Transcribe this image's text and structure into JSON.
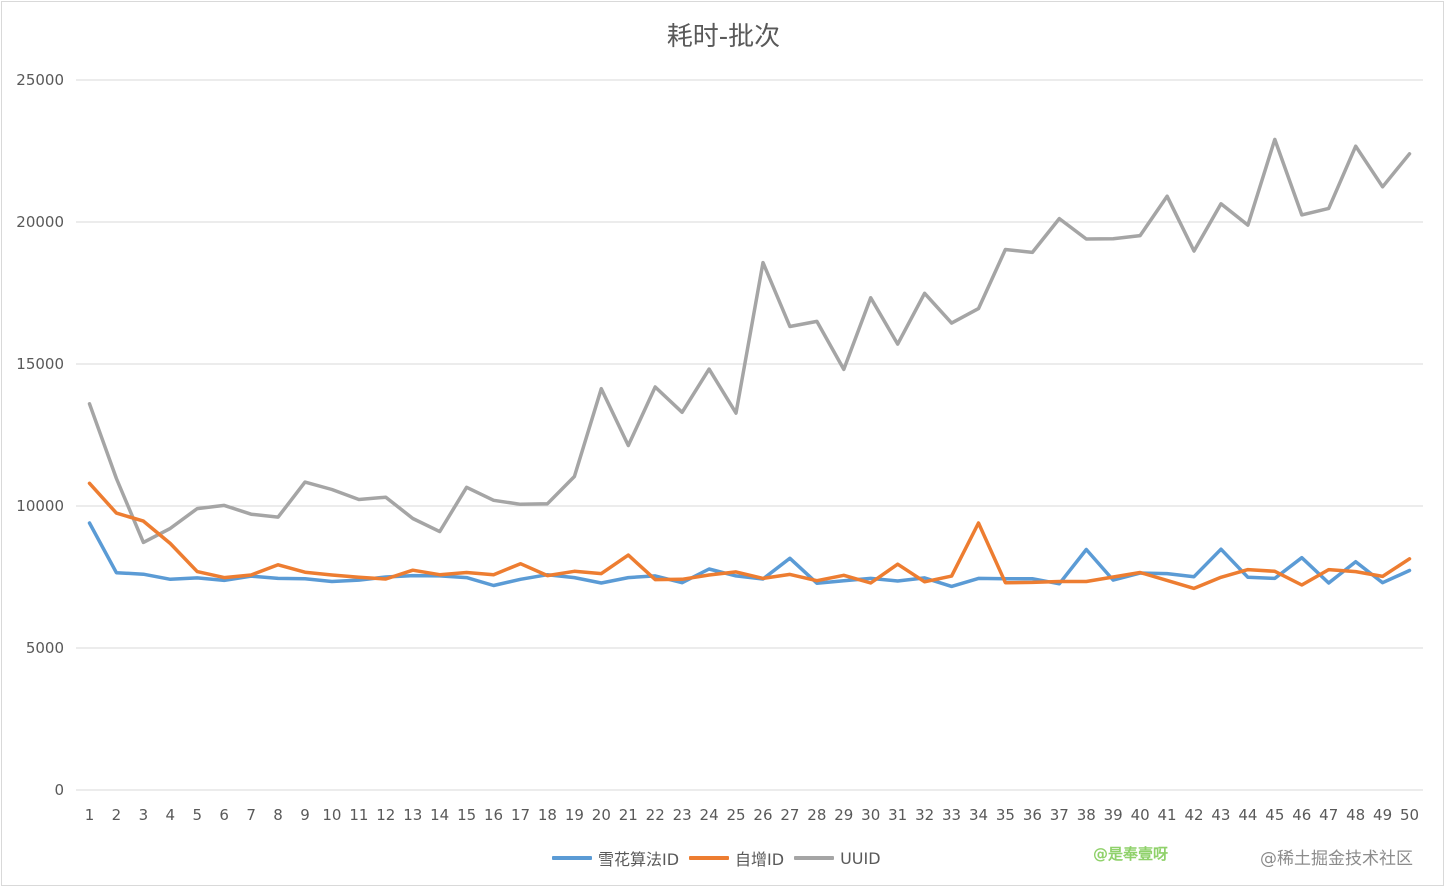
{
  "chart_data": {
    "type": "line",
    "title": "耗时-批次",
    "xlabel": "",
    "ylabel": "",
    "ylim": [
      0,
      25000
    ],
    "yticks": [
      0,
      5000,
      10000,
      15000,
      20000,
      25000
    ],
    "grid": true,
    "legend_position": "bottom",
    "categories": [
      "1",
      "2",
      "3",
      "4",
      "5",
      "6",
      "7",
      "8",
      "9",
      "10",
      "11",
      "12",
      "13",
      "14",
      "15",
      "16",
      "17",
      "18",
      "19",
      "20",
      "21",
      "22",
      "23",
      "24",
      "25",
      "26",
      "27",
      "28",
      "29",
      "30",
      "31",
      "32",
      "33",
      "34",
      "35",
      "36",
      "37",
      "38",
      "39",
      "40",
      "41",
      "42",
      "43",
      "44",
      "45",
      "46",
      "47",
      "48",
      "49",
      "50"
    ],
    "series": [
      {
        "name": "雪花算法ID",
        "color": "#5b9bd5",
        "values": [
          9400,
          7650,
          7600,
          7420,
          7470,
          7380,
          7530,
          7450,
          7440,
          7340,
          7390,
          7500,
          7550,
          7540,
          7480,
          7200,
          7420,
          7580,
          7480,
          7290,
          7480,
          7540,
          7300,
          7780,
          7540,
          7430,
          8160,
          7280,
          7370,
          7450,
          7360,
          7470,
          7170,
          7450,
          7440,
          7440,
          7260,
          8470,
          7390,
          7640,
          7620,
          7510,
          8480,
          7490,
          7450,
          8180,
          7290,
          8040,
          7300,
          7730
        ]
      },
      {
        "name": "自增ID",
        "color": "#ed7d31",
        "values": [
          10800,
          9750,
          9470,
          8680,
          7690,
          7480,
          7570,
          7930,
          7670,
          7570,
          7490,
          7430,
          7740,
          7580,
          7660,
          7580,
          7970,
          7550,
          7700,
          7620,
          8270,
          7410,
          7420,
          7570,
          7680,
          7450,
          7590,
          7370,
          7560,
          7290,
          7950,
          7330,
          7530,
          9400,
          7300,
          7310,
          7340,
          7340,
          7500,
          7660,
          7380,
          7100,
          7490,
          7760,
          7700,
          7220,
          7760,
          7690,
          7520,
          8140
        ]
      },
      {
        "name": "UUID",
        "color": "#a5a5a5",
        "values": [
          13600,
          10970,
          8720,
          9210,
          9910,
          10020,
          9710,
          9610,
          10840,
          10580,
          10230,
          10310,
          9560,
          9100,
          10660,
          10200,
          10060,
          10080,
          11040,
          14130,
          12130,
          14190,
          13300,
          14820,
          13270,
          18570,
          16320,
          16500,
          14810,
          17330,
          15700,
          17490,
          16440,
          16950,
          19030,
          18930,
          20120,
          19400,
          19410,
          19520,
          20910,
          18980,
          20640,
          19890,
          22910,
          20250,
          20480,
          22670,
          21240,
          22400
        ]
      }
    ]
  },
  "watermarks": {
    "author": "@是奉壹呀",
    "site": "@稀土掘金技术社区"
  }
}
